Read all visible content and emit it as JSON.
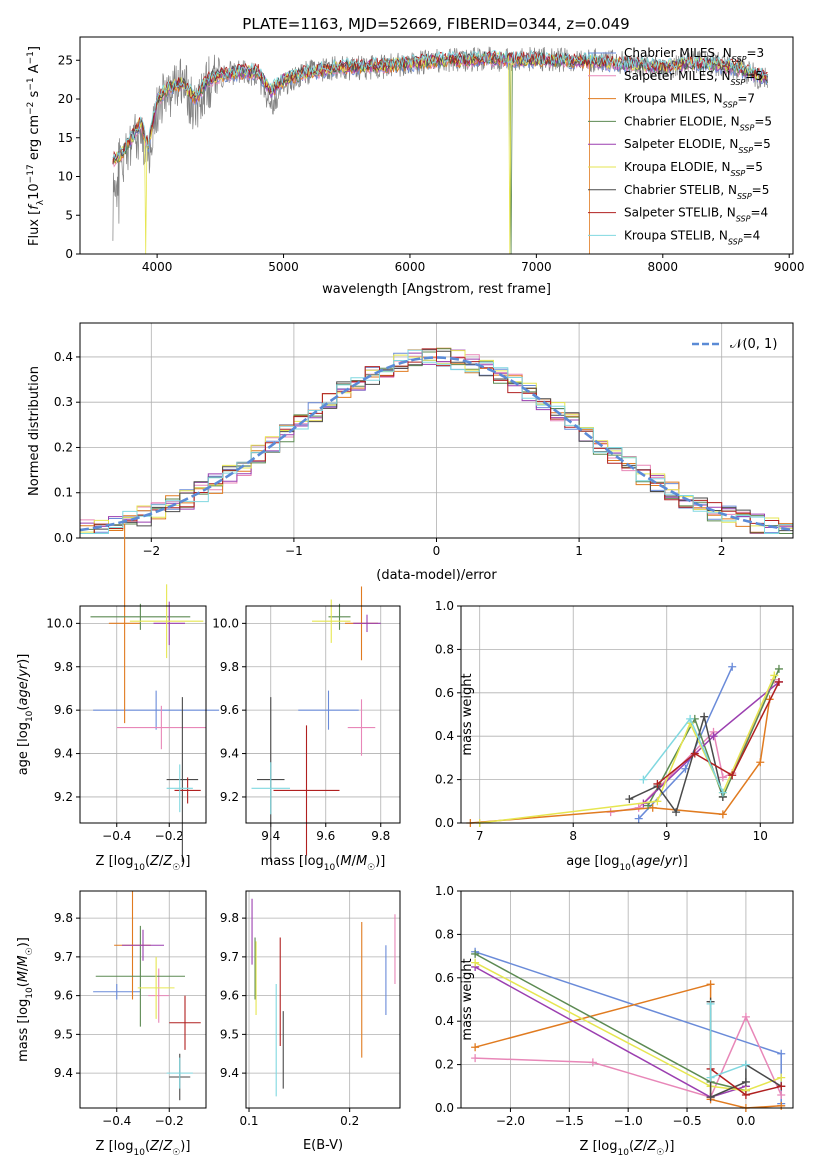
{
  "figure_title": "PLATE=1163, MJD=52669, FIBERID=0344, z=0.049",
  "colors": [
    "#6a8bd9",
    "#e887b8",
    "#e07b20",
    "#5c8a52",
    "#9b3fb0",
    "#e6e650",
    "#4a4a4a",
    "#b02020",
    "#80d8e0"
  ],
  "legend1": [
    {
      "base": "Chabrier MILES, N",
      "sub": "SSP",
      "eq": "=3"
    },
    {
      "base": "Salpeter MILES, N",
      "sub": "SSP",
      "eq": "=5"
    },
    {
      "base": "Kroupa MILES, N",
      "sub": "SSP",
      "eq": "=7"
    },
    {
      "base": "Chabrier ELODIE, N",
      "sub": "SSP",
      "eq": "=5"
    },
    {
      "base": "Salpeter ELODIE, N",
      "sub": "SSP",
      "eq": "=5"
    },
    {
      "base": "Kroupa ELODIE, N",
      "sub": "SSP",
      "eq": "=5"
    },
    {
      "base": "Chabrier STELIB, N",
      "sub": "SSP",
      "eq": "=5"
    },
    {
      "base": "Salpeter STELIB, N",
      "sub": "SSP",
      "eq": "=4"
    },
    {
      "base": "Kroupa STELIB, N",
      "sub": "SSP",
      "eq": "=4"
    }
  ],
  "legend2": {
    "label": "𝒩(0, 1)"
  },
  "chart_data": [
    {
      "type": "line",
      "xlabel": "wavelength [Angstrom, rest frame]",
      "ylabel": "Flux [f_λ10^-17 erg cm^-2 s^-1 A^-1]",
      "ylabel_parts": [
        "Flux [",
        "f",
        "λ",
        "10",
        "−17",
        " erg cm",
        "−2",
        " s",
        "−1",
        " A",
        "−1",
        "]"
      ],
      "xlim": [
        3390,
        9030
      ],
      "ylim": [
        0,
        28
      ],
      "xticks": [
        4000,
        5000,
        6000,
        7000,
        8000,
        9000
      ],
      "yticks": [
        0,
        5,
        10,
        15,
        20,
        25
      ],
      "xticklabels": [
        "4000",
        "5000",
        "6000",
        "7000",
        "8000",
        "9000"
      ],
      "yticklabels": [
        "0",
        "5",
        "10",
        "15",
        "20",
        "25"
      ],
      "series": [
        {
          "name": "data",
          "x": [
            3650,
            3720,
            3800,
            3870,
            3930,
            4000,
            4100,
            4200,
            4300,
            4400,
            4500,
            4650,
            4800,
            4900,
            5000,
            5200,
            5400,
            5600,
            5800,
            6000,
            6200,
            6400,
            6600,
            6800,
            7000,
            7200,
            7400,
            7600,
            7800,
            8000,
            8200,
            8400,
            8600,
            8800
          ],
          "y": [
            11,
            12,
            14,
            16,
            12,
            19,
            21,
            22,
            19,
            22,
            23,
            23.5,
            23,
            19,
            22,
            23.5,
            24,
            24,
            24.2,
            24.5,
            25,
            25,
            25.2,
            25,
            25.2,
            25,
            25,
            24.8,
            24.5,
            24,
            24.8,
            24.6,
            24,
            22.5
          ]
        },
        {
          "name": "model",
          "x": [
            3650,
            3720,
            3800,
            3870,
            3930,
            4000,
            4100,
            4200,
            4300,
            4400,
            4500,
            4650,
            4800,
            4900,
            5000,
            5200,
            5400,
            5600,
            5800,
            6000,
            6200,
            6400,
            6600,
            6800,
            7000,
            7200,
            7400,
            7600,
            7800,
            8000,
            8200,
            8400,
            8600,
            8800
          ],
          "y": [
            12,
            13,
            15,
            17,
            14,
            20,
            21.5,
            22,
            20,
            22.5,
            23,
            23.5,
            23.5,
            21,
            22.5,
            23.5,
            24,
            24.2,
            24.3,
            24.6,
            25,
            25,
            25.2,
            25.1,
            25.1,
            25,
            24.9,
            24.6,
            24.4,
            24.1,
            24.5,
            24.4,
            24,
            22.8
          ]
        }
      ]
    },
    {
      "type": "bar",
      "xlabel": "(data-model)/error",
      "ylabel": "Normed distribution",
      "xlim": [
        -2.5,
        2.5
      ],
      "ylim": [
        0,
        0.475
      ],
      "xticks": [
        -2,
        -1,
        0,
        1,
        2
      ],
      "yticks": [
        0,
        0.1,
        0.2,
        0.3,
        0.4
      ],
      "xticklabels": [
        "−2",
        "−1",
        "0",
        "1",
        "2"
      ],
      "yticklabels": [
        "0.0",
        "0.1",
        "0.2",
        "0.3",
        "0.4"
      ],
      "bin_width": 0.1,
      "gaussian": {
        "mean": 0,
        "sigma": 1
      }
    },
    {
      "type": "scatter",
      "xlabel": "Z [log10(Z/Z☉)]",
      "ylabel": "age  [log10(age/yr)]",
      "xlim": [
        -0.54,
        -0.06
      ],
      "ylim": [
        9.08,
        10.08
      ],
      "xticks": [
        -0.4,
        -0.2
      ],
      "yticks": [
        9.2,
        9.4,
        9.6,
        9.8,
        10.0
      ],
      "xticklabels": [
        "−0.4",
        "−0.2"
      ],
      "yticklabels": [
        "9.2",
        "9.4",
        "9.6",
        "9.8",
        "10.0"
      ],
      "points": [
        {
          "x": -0.25,
          "y": 9.6,
          "xerr": 0.24,
          "yerr": 0.09
        },
        {
          "x": -0.23,
          "y": 9.52,
          "xerr": 0.17,
          "yerr": 0.1
        },
        {
          "x": -0.37,
          "y": 10.0,
          "xerr": 0.06,
          "yerr": 0.46
        },
        {
          "x": -0.31,
          "y": 10.03,
          "xerr": 0.19,
          "yerr": 0.06
        },
        {
          "x": -0.2,
          "y": 10.0,
          "xerr": 0.06,
          "yerr": 0.1
        },
        {
          "x": -0.21,
          "y": 10.01,
          "xerr": 0.14,
          "yerr": 0.17
        },
        {
          "x": -0.15,
          "y": 9.28,
          "xerr": 0.06,
          "yerr": 0.38
        },
        {
          "x": -0.13,
          "y": 9.23,
          "xerr": 0.05,
          "yerr": 0.06
        },
        {
          "x": -0.16,
          "y": 9.24,
          "xerr": 0.05,
          "yerr": 0.11
        }
      ]
    },
    {
      "type": "scatter",
      "xlabel": "mass [log10(M/M☉)]",
      "ylabel": "",
      "xlim": [
        9.31,
        9.87
      ],
      "ylim": [
        9.08,
        10.08
      ],
      "xticks": [
        9.4,
        9.6,
        9.8
      ],
      "yticks": [
        9.2,
        9.4,
        9.6,
        9.8,
        10.0
      ],
      "xticklabels": [
        "9.4",
        "9.6",
        "9.8"
      ],
      "yticklabels": [
        "9.2",
        "9.4",
        "9.6",
        "9.8",
        "10.0"
      ],
      "points": [
        {
          "x": 9.61,
          "y": 9.6,
          "xerr": 0.11,
          "yerr": 0.09
        },
        {
          "x": 9.73,
          "y": 9.52,
          "xerr": 0.05,
          "yerr": 0.13
        },
        {
          "x": 9.73,
          "y": 10.0,
          "xerr": 0.06,
          "yerr": 0.17
        },
        {
          "x": 9.65,
          "y": 10.03,
          "xerr": 0.04,
          "yerr": 0.06
        },
        {
          "x": 9.75,
          "y": 10.0,
          "xerr": 0.05,
          "yerr": 0.04
        },
        {
          "x": 9.62,
          "y": 10.01,
          "xerr": 0.07,
          "yerr": 0.1
        },
        {
          "x": 9.4,
          "y": 9.28,
          "xerr": 0.05,
          "yerr": 0.38
        },
        {
          "x": 9.53,
          "y": 9.23,
          "xerr": 0.12,
          "yerr": 0.3
        },
        {
          "x": 9.4,
          "y": 9.24,
          "xerr": 0.07,
          "yerr": 0.12
        }
      ]
    },
    {
      "type": "line",
      "xlabel": "age  [log10(age/yr)]",
      "ylabel": "mass weight",
      "xlim": [
        6.8,
        10.35
      ],
      "ylim": [
        0,
        1.0
      ],
      "xticks": [
        7,
        8,
        9,
        10
      ],
      "yticks": [
        0,
        0.2,
        0.4,
        0.6,
        0.8,
        1.0
      ],
      "xticklabels": [
        "7",
        "8",
        "9",
        "10"
      ],
      "yticklabels": [
        "0.0",
        "0.2",
        "0.4",
        "0.6",
        "0.8",
        "1.0"
      ],
      "series": [
        {
          "x": [
            8.7,
            9.2,
            9.7
          ],
          "y": [
            0.02,
            0.25,
            0.72
          ]
        },
        {
          "x": [
            8.4,
            8.7,
            9.5,
            9.6,
            9.7,
            10.15
          ],
          "y": [
            0.05,
            0.07,
            0.42,
            0.21,
            0.23,
            0.66
          ]
        },
        {
          "x": [
            6.9,
            8.85,
            9.6,
            10.0,
            10.1
          ],
          "y": [
            0.0,
            0.07,
            0.04,
            0.28,
            0.57
          ]
        },
        {
          "x": [
            8.8,
            9.3,
            9.6,
            10.2
          ],
          "y": [
            0.08,
            0.48,
            0.12,
            0.71
          ]
        },
        {
          "x": [
            8.75,
            9.5,
            10.2
          ],
          "y": [
            0.09,
            0.4,
            0.65
          ]
        },
        {
          "x": [
            7.0,
            8.9,
            9.25,
            9.6,
            10.15
          ],
          "y": [
            0.0,
            0.1,
            0.46,
            0.14,
            0.68
          ]
        },
        {
          "x": [
            8.6,
            8.9,
            9.1,
            9.4,
            9.6
          ],
          "y": [
            0.11,
            0.17,
            0.05,
            0.49,
            0.12
          ]
        },
        {
          "x": [
            8.9,
            9.3,
            9.7,
            10.2
          ],
          "y": [
            0.18,
            0.32,
            0.22,
            0.65
          ]
        },
        {
          "x": [
            8.75,
            9.25,
            9.6
          ],
          "y": [
            0.2,
            0.48,
            0.14
          ]
        }
      ]
    },
    {
      "type": "scatter",
      "xlabel": "Z [log10(Z/Z☉)]",
      "ylabel": "mass [log10(M/M☉)]",
      "xlim": [
        -0.54,
        -0.06
      ],
      "ylim": [
        9.31,
        9.87
      ],
      "xticks": [
        -0.4,
        -0.2
      ],
      "yticks": [
        9.4,
        9.5,
        9.6,
        9.7,
        9.8
      ],
      "xticklabels": [
        "−0.4",
        "−0.2"
      ],
      "yticklabels": [
        "9.4",
        "9.5",
        "9.6",
        "9.7",
        "9.8"
      ],
      "points": [
        {
          "x": -0.4,
          "y": 9.61,
          "xerr": 0.09,
          "yerr": 0.02
        },
        {
          "x": -0.24,
          "y": 9.6,
          "xerr": 0.04,
          "yerr": 0.07
        },
        {
          "x": -0.34,
          "y": 9.73,
          "xerr": 0.07,
          "yerr": 0.14
        },
        {
          "x": -0.31,
          "y": 9.65,
          "xerr": 0.17,
          "yerr": 0.13
        },
        {
          "x": -0.3,
          "y": 9.73,
          "xerr": 0.08,
          "yerr": 0.04
        },
        {
          "x": -0.25,
          "y": 9.62,
          "xerr": 0.07,
          "yerr": 0.08
        },
        {
          "x": -0.16,
          "y": 9.39,
          "xerr": 0.04,
          "yerr": 0.06
        },
        {
          "x": -0.14,
          "y": 9.53,
          "xerr": 0.06,
          "yerr": 0.07
        },
        {
          "x": -0.16,
          "y": 9.4,
          "xerr": 0.05,
          "yerr": 0.04
        }
      ]
    },
    {
      "type": "scatter",
      "xlabel": "E(B-V)",
      "ylabel": "",
      "xlim": [
        0.097,
        0.25
      ],
      "ylim": [
        9.31,
        9.87
      ],
      "xticks": [
        0.1,
        0.2
      ],
      "yticks": [
        9.4,
        9.5,
        9.6,
        9.7,
        9.8
      ],
      "xticklabels": [
        "0.1",
        "0.2"
      ],
      "yticklabels": [
        "9.4",
        "9.5",
        "9.6",
        "9.7",
        "9.8"
      ],
      "segments": [
        {
          "x": 0.236,
          "y0": 9.55,
          "y1": 9.73
        },
        {
          "x": 0.245,
          "y0": 9.63,
          "y1": 9.81
        },
        {
          "x": 0.212,
          "y0": 9.44,
          "y1": 9.79
        },
        {
          "x": 0.106,
          "y0": 9.59,
          "y1": 9.75
        },
        {
          "x": 0.103,
          "y0": 9.68,
          "y1": 9.85
        },
        {
          "x": 0.107,
          "y0": 9.55,
          "y1": 9.74
        },
        {
          "x": 0.134,
          "y0": 9.36,
          "y1": 9.56
        },
        {
          "x": 0.131,
          "y0": 9.47,
          "y1": 9.75
        },
        {
          "x": 0.127,
          "y0": 9.34,
          "y1": 9.63
        }
      ]
    },
    {
      "type": "line",
      "xlabel": "Z [log10(Z/Z☉)]",
      "ylabel": "mass weight",
      "xlim": [
        -2.42,
        0.4
      ],
      "ylim": [
        0,
        1.0
      ],
      "xticks": [
        -2.0,
        -1.5,
        -1.0,
        -0.5,
        0.0
      ],
      "yticks": [
        0,
        0.2,
        0.4,
        0.6,
        0.8,
        1.0
      ],
      "xticklabels": [
        "−2.0",
        "−1.5",
        "−1.0",
        "−0.5",
        "0.0"
      ],
      "yticklabels": [
        "0.0",
        "0.2",
        "0.4",
        "0.6",
        "0.8",
        "1.0"
      ],
      "series": [
        {
          "x": [
            -2.3,
            0.3,
            0.3
          ],
          "y": [
            0.72,
            0.25,
            0.02
          ]
        },
        {
          "x": [
            -2.3,
            -1.3,
            -0.3,
            0.0,
            0.3
          ],
          "y": [
            0.23,
            0.21,
            0.05,
            0.42,
            0.06
          ]
        },
        {
          "x": [
            -2.3,
            -0.3,
            -0.3,
            0.0,
            0.3
          ],
          "y": [
            0.28,
            0.57,
            0.04,
            0.0,
            0.01
          ]
        },
        {
          "x": [
            -2.3,
            -0.3,
            0.0
          ],
          "y": [
            0.71,
            0.12,
            0.08
          ]
        },
        {
          "x": [
            -2.3,
            -0.3,
            0.0
          ],
          "y": [
            0.65,
            0.05,
            0.1
          ]
        },
        {
          "x": [
            -2.3,
            -0.3,
            0.0,
            0.3
          ],
          "y": [
            0.67,
            0.1,
            0.08,
            0.14
          ]
        },
        {
          "x": [
            -0.3,
            -0.3,
            0.0,
            0.0,
            0.3
          ],
          "y": [
            0.49,
            0.05,
            0.12,
            0.2,
            0.1
          ]
        },
        {
          "x": [
            -0.3,
            0.0,
            0.3
          ],
          "y": [
            0.18,
            0.06,
            0.1
          ]
        },
        {
          "x": [
            -0.3,
            -0.3,
            0.0
          ],
          "y": [
            0.48,
            0.14,
            0.2
          ]
        }
      ]
    }
  ]
}
